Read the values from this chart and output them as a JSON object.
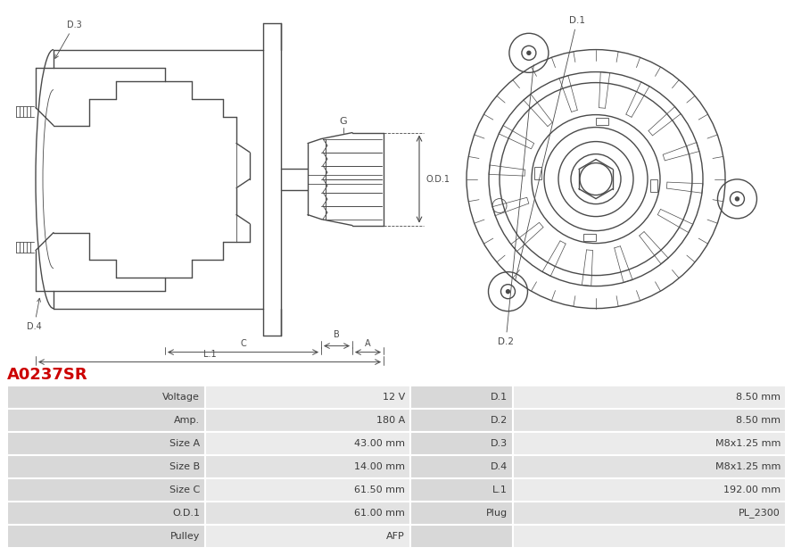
{
  "title": "A0237SR",
  "title_color": "#cc0000",
  "bg_color": "#ffffff",
  "table_data": [
    [
      "Voltage",
      "12 V",
      "D.1",
      "8.50 mm"
    ],
    [
      "Amp.",
      "180 A",
      "D.2",
      "8.50 mm"
    ],
    [
      "Size A",
      "43.00 mm",
      "D.3",
      "M8x1.25 mm"
    ],
    [
      "Size B",
      "14.00 mm",
      "D.4",
      "M8x1.25 mm"
    ],
    [
      "Size C",
      "61.50 mm",
      "L.1",
      "192.00 mm"
    ],
    [
      "O.D.1",
      "61.00 mm",
      "Plug",
      "PL_2300"
    ],
    [
      "Pulley",
      "AFP",
      "",
      ""
    ]
  ],
  "lc": "#4a4a4a",
  "lw_main": 1.0,
  "lw_thin": 0.6,
  "row_bg_label": "#d8d8d8",
  "row_bg_val_odd": "#ebebeb",
  "row_bg_val_even": "#e2e2e2"
}
